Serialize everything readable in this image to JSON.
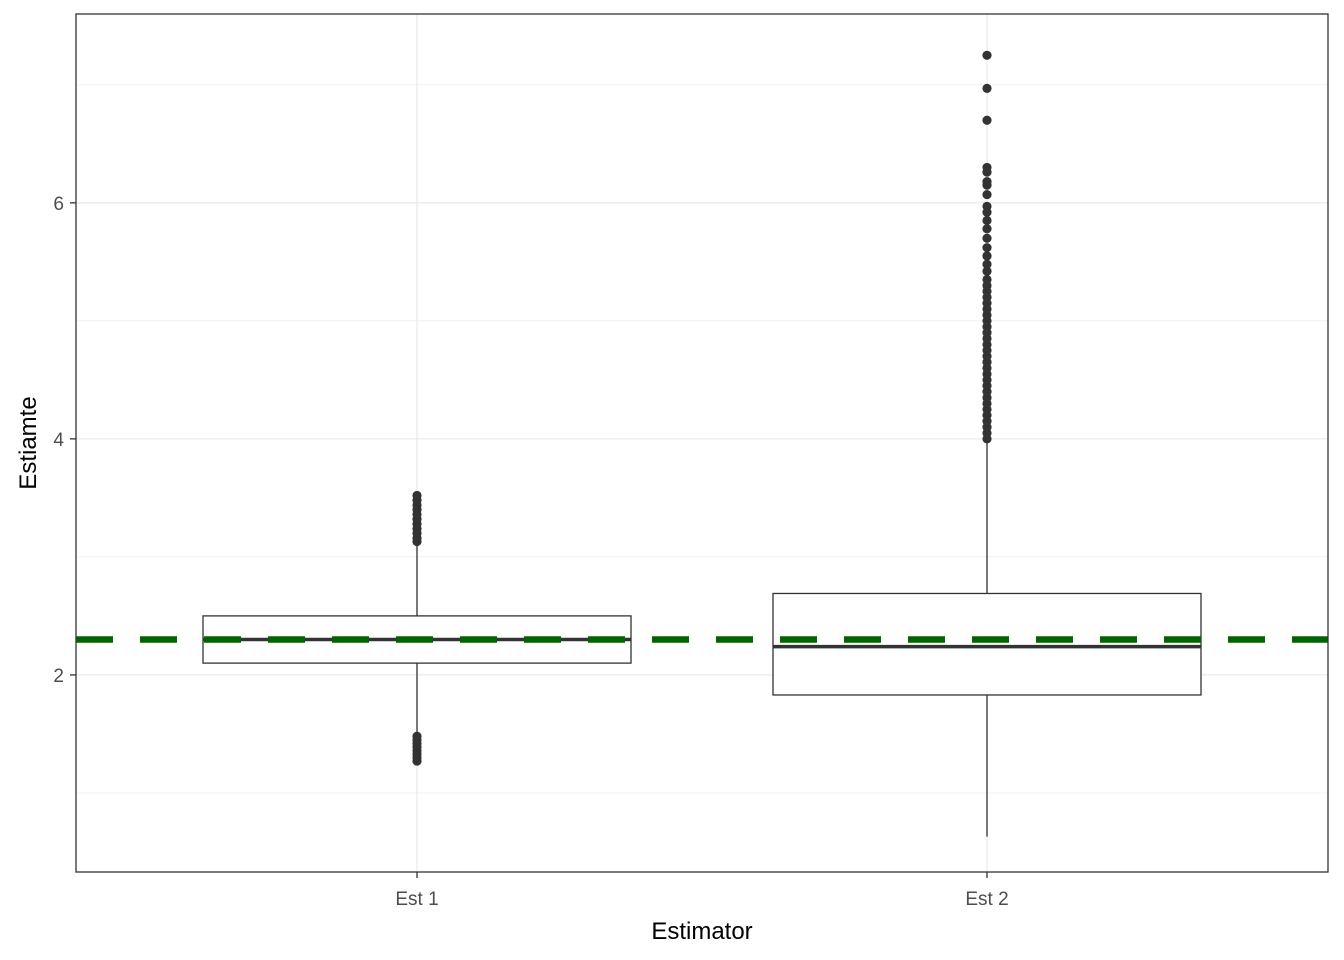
{
  "chart_data": {
    "type": "boxplot",
    "title": "",
    "xlabel": "Estimator",
    "ylabel": "Estiamte",
    "categories": [
      "Est 1",
      "Est 2"
    ],
    "ylim": [
      0.33,
      7.6
    ],
    "y_ticks": [
      2,
      4,
      6
    ],
    "y_tick_labels": [
      "2",
      "4",
      "6"
    ],
    "y_minor_ticks": [
      1,
      3,
      5,
      7
    ],
    "grid": true,
    "theme": "bw",
    "reference_line": {
      "y": 2.3,
      "style": "dashed",
      "color": "#006400"
    },
    "boxes": [
      {
        "category": "Est 1",
        "q1": 2.1,
        "median": 2.3,
        "q3": 2.5,
        "whisker_low": 1.5,
        "whisker_high": 3.1,
        "outliers": [
          1.27,
          1.3,
          1.33,
          1.36,
          1.39,
          1.42,
          1.45,
          1.48,
          3.13,
          3.16,
          3.2,
          3.24,
          3.28,
          3.32,
          3.36,
          3.4,
          3.44,
          3.48,
          3.52
        ]
      },
      {
        "category": "Est 2",
        "q1": 1.83,
        "median": 2.24,
        "q3": 2.69,
        "whisker_low": 0.63,
        "whisker_high": 3.98,
        "outliers": [
          4.0,
          4.05,
          4.1,
          4.15,
          4.2,
          4.25,
          4.3,
          4.35,
          4.4,
          4.45,
          4.5,
          4.55,
          4.6,
          4.65,
          4.7,
          4.75,
          4.8,
          4.85,
          4.9,
          4.95,
          5.0,
          5.05,
          5.1,
          5.15,
          5.2,
          5.25,
          5.3,
          5.35,
          5.42,
          5.48,
          5.55,
          5.62,
          5.7,
          5.78,
          5.85,
          5.92,
          5.97,
          6.07,
          6.15,
          6.18,
          6.26,
          6.3,
          6.7,
          6.97,
          7.25
        ]
      }
    ],
    "colors": {
      "box_stroke": "#333333",
      "box_fill": "#ffffff",
      "outlier": "#333333",
      "grid": "#ebebeb",
      "panel_border": "#333333",
      "reference_line": "#006400"
    }
  }
}
